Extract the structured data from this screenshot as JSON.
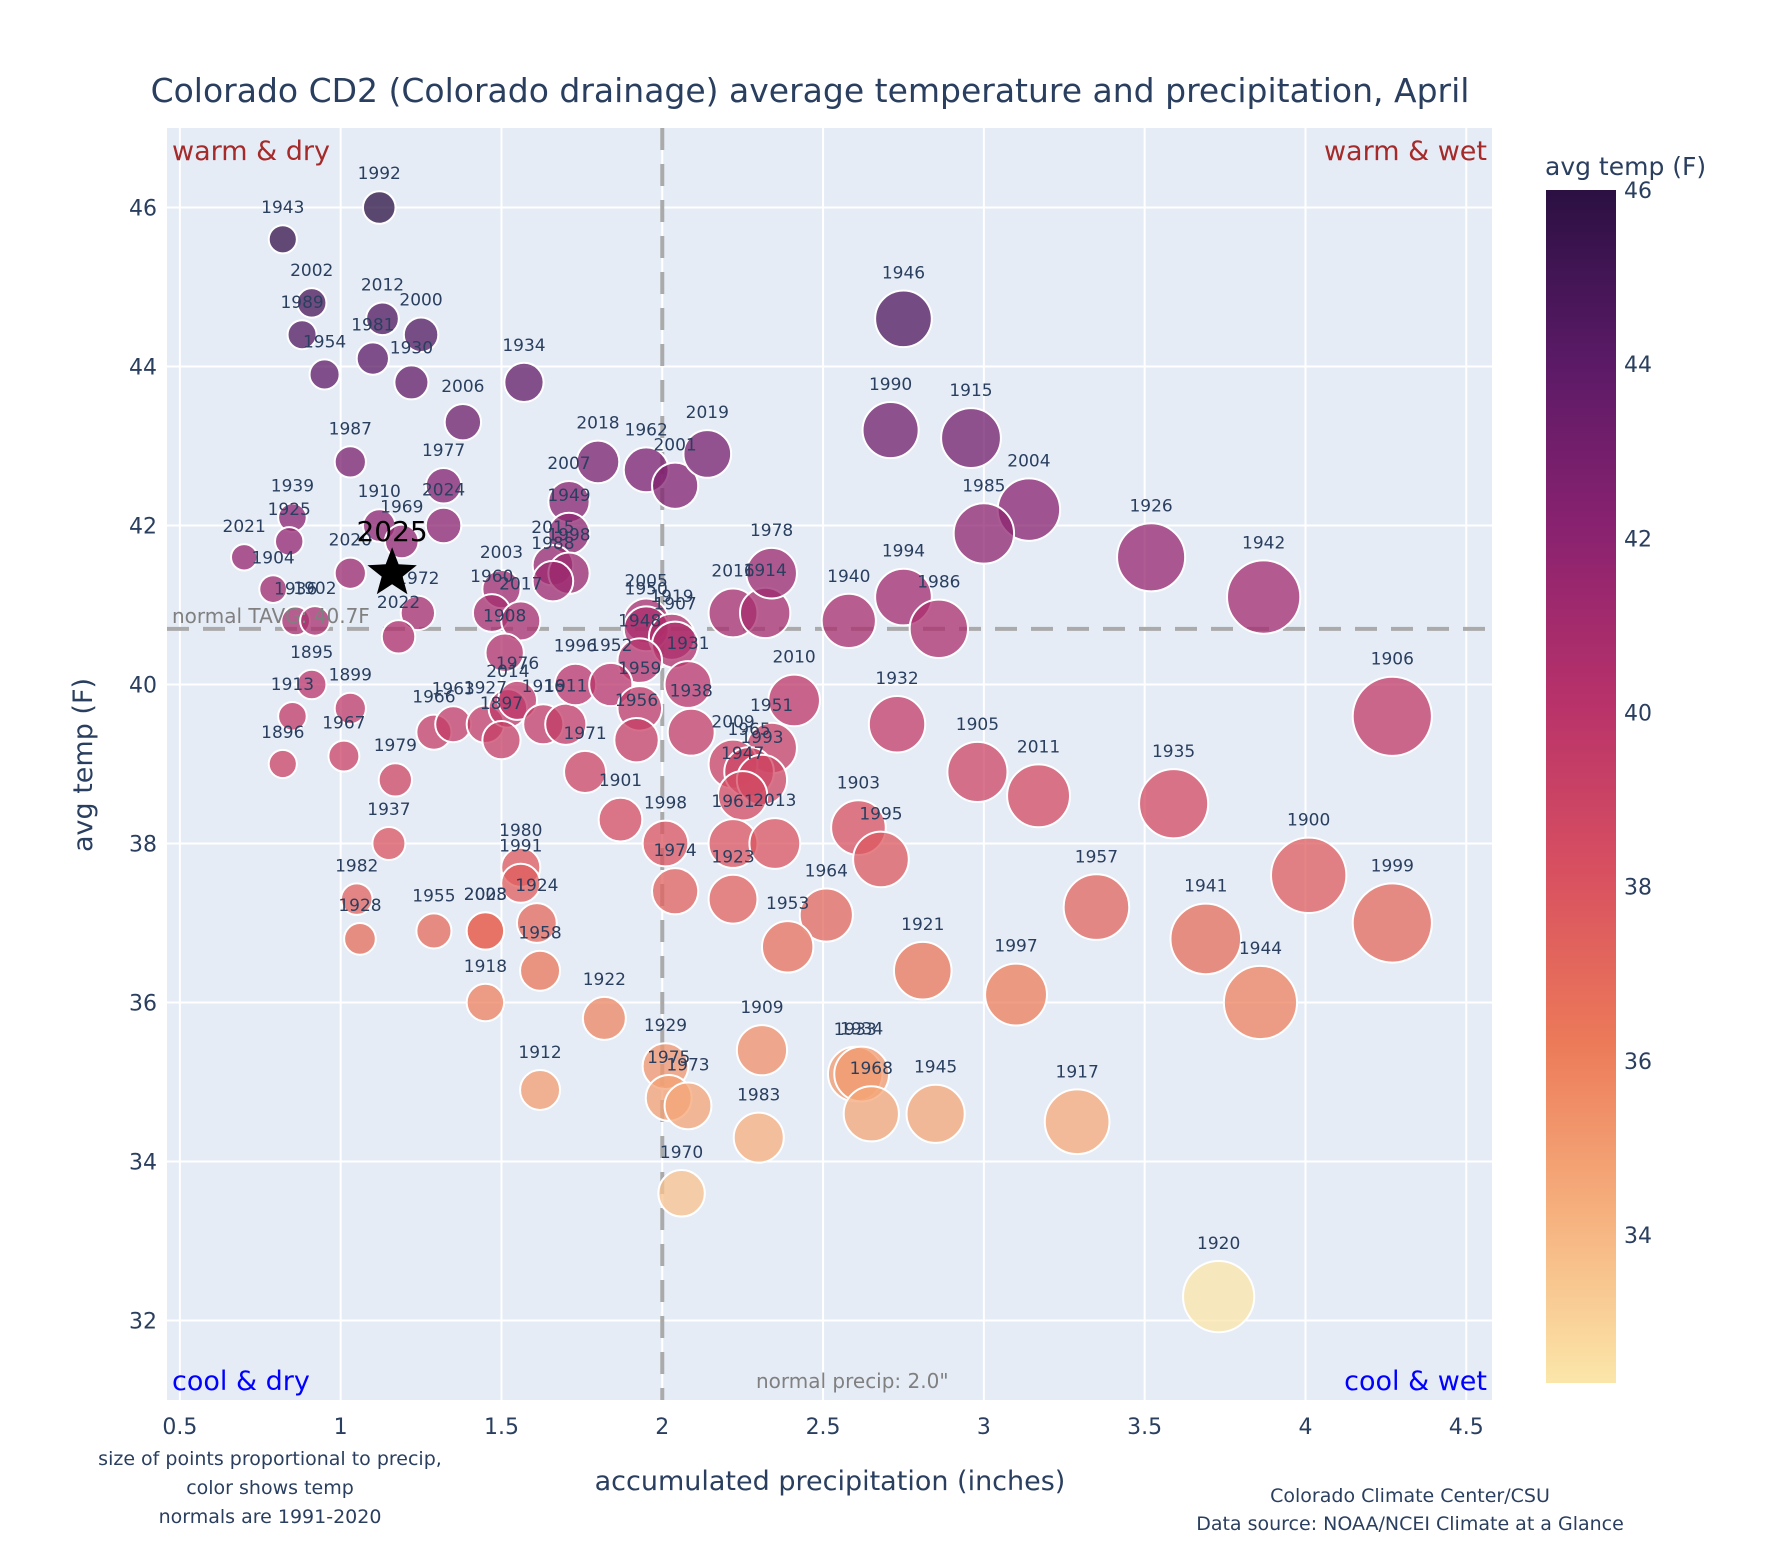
{
  "chart_data": {
    "type": "scatter",
    "title": "Colorado CD2 (Colorado drainage) average temperature and precipitation, April",
    "xlabel": "accumulated precipitation (inches)",
    "ylabel": "avg temp (F)",
    "xlim": [
      0.46,
      4.58
    ],
    "ylim": [
      31.0,
      47.0
    ],
    "xticks": [
      "0.5",
      "1",
      "1.5",
      "2",
      "2.5",
      "3",
      "3.5",
      "4",
      "4.5"
    ],
    "xtick_values": [
      0.5,
      1,
      1.5,
      2,
      2.5,
      3,
      3.5,
      4,
      4.5
    ],
    "yticks": [
      "32",
      "34",
      "36",
      "38",
      "40",
      "42",
      "44",
      "46"
    ],
    "ytick_values": [
      32,
      34,
      36,
      38,
      40,
      42,
      44,
      46
    ],
    "grid": true,
    "colorbar": {
      "title": "avg temp (F)",
      "range": [
        32.3,
        46.0
      ],
      "ticks": [
        "34",
        "36",
        "38",
        "40",
        "42",
        "44",
        "46"
      ],
      "tick_values": [
        34,
        36,
        38,
        40,
        42,
        44,
        46
      ],
      "colorscale": [
        "#fbe6a9",
        "#f6b07e",
        "#ec7a59",
        "#d85060",
        "#b8326a",
        "#8a2270",
        "#5a1a66",
        "#2b1042"
      ]
    },
    "normal_temp": 40.7,
    "normal_precip": 2.0,
    "normal_temp_label": "normal TAVG: 40.7F",
    "normal_precip_label": "normal precip: 2.0\"",
    "quadrants": {
      "top_left": "warm & dry",
      "top_right": "warm & wet",
      "bottom_left": "cool & dry",
      "bottom_right": "cool & wet"
    },
    "highlight": {
      "label": "2025",
      "x": 1.16,
      "y": 41.4,
      "marker": "star"
    },
    "points": [
      {
        "year": "1992",
        "x": 1.12,
        "y": 46.0
      },
      {
        "year": "1943",
        "x": 0.82,
        "y": 45.6
      },
      {
        "year": "2002",
        "x": 0.91,
        "y": 44.8
      },
      {
        "year": "1989",
        "x": 0.88,
        "y": 44.4
      },
      {
        "year": "2012",
        "x": 1.13,
        "y": 44.6
      },
      {
        "year": "2000",
        "x": 1.25,
        "y": 44.4
      },
      {
        "year": "1981",
        "x": 1.1,
        "y": 44.1
      },
      {
        "year": "1954",
        "x": 0.95,
        "y": 43.9
      },
      {
        "year": "1930",
        "x": 1.22,
        "y": 43.8
      },
      {
        "year": "1934",
        "x": 1.57,
        "y": 43.8
      },
      {
        "year": "2006",
        "x": 1.38,
        "y": 43.3
      },
      {
        "year": "1987",
        "x": 1.03,
        "y": 42.8
      },
      {
        "year": "1977",
        "x": 1.32,
        "y": 42.5
      },
      {
        "year": "2018",
        "x": 1.8,
        "y": 42.8
      },
      {
        "year": "1962",
        "x": 1.95,
        "y": 42.7
      },
      {
        "year": "2001",
        "x": 2.04,
        "y": 42.5
      },
      {
        "year": "2019",
        "x": 2.14,
        "y": 42.9
      },
      {
        "year": "2007",
        "x": 1.71,
        "y": 42.3
      },
      {
        "year": "1939",
        "x": 0.85,
        "y": 42.1
      },
      {
        "year": "1910",
        "x": 1.12,
        "y": 42.0
      },
      {
        "year": "2024",
        "x": 1.32,
        "y": 42.0
      },
      {
        "year": "1925",
        "x": 0.84,
        "y": 41.8
      },
      {
        "year": "1969",
        "x": 1.19,
        "y": 41.8
      },
      {
        "year": "2021",
        "x": 0.7,
        "y": 41.6
      },
      {
        "year": "1949",
        "x": 1.71,
        "y": 41.9
      },
      {
        "year": "2015",
        "x": 1.66,
        "y": 41.5
      },
      {
        "year": "1998",
        "x": 1.71,
        "y": 41.4
      },
      {
        "year": "1988",
        "x": 1.66,
        "y": 41.3
      },
      {
        "year": "2020",
        "x": 1.03,
        "y": 41.4
      },
      {
        "year": "1904",
        "x": 0.79,
        "y": 41.2
      },
      {
        "year": "2003",
        "x": 1.5,
        "y": 41.2
      },
      {
        "year": "1972",
        "x": 1.24,
        "y": 40.9
      },
      {
        "year": "1960",
        "x": 1.47,
        "y": 40.9
      },
      {
        "year": "2017",
        "x": 1.56,
        "y": 40.8
      },
      {
        "year": "1936",
        "x": 0.86,
        "y": 40.8
      },
      {
        "year": "1902",
        "x": 0.92,
        "y": 40.8
      },
      {
        "year": "2022",
        "x": 1.18,
        "y": 40.6
      },
      {
        "year": "1908",
        "x": 1.51,
        "y": 40.4
      },
      {
        "year": "2005",
        "x": 1.95,
        "y": 40.8
      },
      {
        "year": "1950",
        "x": 1.95,
        "y": 40.7
      },
      {
        "year": "1919",
        "x": 2.03,
        "y": 40.6
      },
      {
        "year": "1907",
        "x": 2.04,
        "y": 40.5
      },
      {
        "year": "1948",
        "x": 1.93,
        "y": 40.3
      },
      {
        "year": "2016",
        "x": 2.22,
        "y": 40.9
      },
      {
        "year": "1914",
        "x": 2.32,
        "y": 40.9
      },
      {
        "year": "1978",
        "x": 2.34,
        "y": 41.4
      },
      {
        "year": "1940",
        "x": 2.58,
        "y": 40.8
      },
      {
        "year": "1994",
        "x": 2.75,
        "y": 41.1
      },
      {
        "year": "1986",
        "x": 2.86,
        "y": 40.7
      },
      {
        "year": "1990",
        "x": 2.71,
        "y": 43.2
      },
      {
        "year": "1915",
        "x": 2.96,
        "y": 43.1
      },
      {
        "year": "2004",
        "x": 3.14,
        "y": 42.2
      },
      {
        "year": "1985",
        "x": 3.0,
        "y": 41.9
      },
      {
        "year": "1926",
        "x": 3.52,
        "y": 41.6
      },
      {
        "year": "1942",
        "x": 3.87,
        "y": 41.1
      },
      {
        "year": "1946",
        "x": 2.75,
        "y": 44.6
      },
      {
        "year": "1895",
        "x": 0.91,
        "y": 40.0
      },
      {
        "year": "1913",
        "x": 0.85,
        "y": 39.6
      },
      {
        "year": "1899",
        "x": 1.03,
        "y": 39.7
      },
      {
        "year": "1896",
        "x": 0.82,
        "y": 39.0
      },
      {
        "year": "1967",
        "x": 1.01,
        "y": 39.1
      },
      {
        "year": "1979",
        "x": 1.17,
        "y": 38.8
      },
      {
        "year": "1966",
        "x": 1.29,
        "y": 39.4
      },
      {
        "year": "1963",
        "x": 1.35,
        "y": 39.5
      },
      {
        "year": "1927",
        "x": 1.45,
        "y": 39.5
      },
      {
        "year": "2014",
        "x": 1.52,
        "y": 39.7
      },
      {
        "year": "1976",
        "x": 1.55,
        "y": 39.8
      },
      {
        "year": "1897",
        "x": 1.5,
        "y": 39.3
      },
      {
        "year": "1916",
        "x": 1.63,
        "y": 39.5
      },
      {
        "year": "1911",
        "x": 1.7,
        "y": 39.5
      },
      {
        "year": "1996",
        "x": 1.73,
        "y": 40.0
      },
      {
        "year": "1952",
        "x": 1.84,
        "y": 40.0
      },
      {
        "year": "1959",
        "x": 1.93,
        "y": 39.7
      },
      {
        "year": "1931",
        "x": 2.08,
        "y": 40.0
      },
      {
        "year": "1956",
        "x": 1.92,
        "y": 39.3
      },
      {
        "year": "1938",
        "x": 2.09,
        "y": 39.4
      },
      {
        "year": "1971",
        "x": 1.76,
        "y": 38.9
      },
      {
        "year": "2010",
        "x": 2.41,
        "y": 39.8
      },
      {
        "year": "1951",
        "x": 2.34,
        "y": 39.2
      },
      {
        "year": "2009",
        "x": 2.22,
        "y": 39.0
      },
      {
        "year": "1965",
        "x": 2.27,
        "y": 38.9
      },
      {
        "year": "1993",
        "x": 2.31,
        "y": 38.8
      },
      {
        "year": "1947",
        "x": 2.25,
        "y": 38.6
      },
      {
        "year": "1932",
        "x": 2.73,
        "y": 39.5
      },
      {
        "year": "1905",
        "x": 2.98,
        "y": 38.9
      },
      {
        "year": "2011",
        "x": 3.17,
        "y": 38.6
      },
      {
        "year": "1935",
        "x": 3.59,
        "y": 38.5
      },
      {
        "year": "1906",
        "x": 4.27,
        "y": 39.6
      },
      {
        "year": "1901",
        "x": 1.87,
        "y": 38.3
      },
      {
        "year": "1998",
        "x": 2.01,
        "y": 38.0
      },
      {
        "year": "1961",
        "x": 2.22,
        "y": 38.0
      },
      {
        "year": "2013",
        "x": 2.35,
        "y": 38.0
      },
      {
        "year": "1903",
        "x": 2.61,
        "y": 38.2
      },
      {
        "year": "1995",
        "x": 2.68,
        "y": 37.8
      },
      {
        "year": "1937",
        "x": 1.15,
        "y": 38.0
      },
      {
        "year": "1980",
        "x": 1.56,
        "y": 37.7
      },
      {
        "year": "1991",
        "x": 1.56,
        "y": 37.5
      },
      {
        "year": "1982",
        "x": 1.05,
        "y": 37.3
      },
      {
        "year": "1928",
        "x": 1.06,
        "y": 36.8
      },
      {
        "year": "1955",
        "x": 1.29,
        "y": 36.9
      },
      {
        "year": "2023",
        "x": 1.45,
        "y": 36.9
      },
      {
        "year": "2008",
        "x": 1.45,
        "y": 36.9
      },
      {
        "year": "1924",
        "x": 1.61,
        "y": 37.0
      },
      {
        "year": "1958",
        "x": 1.62,
        "y": 36.4
      },
      {
        "year": "1918",
        "x": 1.45,
        "y": 36.0
      },
      {
        "year": "1974",
        "x": 2.04,
        "y": 37.4
      },
      {
        "year": "1923",
        "x": 2.22,
        "y": 37.3
      },
      {
        "year": "1964",
        "x": 2.51,
        "y": 37.1
      },
      {
        "year": "1953",
        "x": 2.39,
        "y": 36.7
      },
      {
        "year": "1957",
        "x": 3.35,
        "y": 37.2
      },
      {
        "year": "1900",
        "x": 4.01,
        "y": 37.6
      },
      {
        "year": "1941",
        "x": 3.69,
        "y": 36.8
      },
      {
        "year": "1999",
        "x": 4.27,
        "y": 37.0
      },
      {
        "year": "1921",
        "x": 2.81,
        "y": 36.4
      },
      {
        "year": "1997",
        "x": 3.1,
        "y": 36.1
      },
      {
        "year": "1944",
        "x": 3.86,
        "y": 36.0
      },
      {
        "year": "1922",
        "x": 1.82,
        "y": 35.8
      },
      {
        "year": "1909",
        "x": 2.31,
        "y": 35.4
      },
      {
        "year": "1929",
        "x": 2.01,
        "y": 35.2
      },
      {
        "year": "1975",
        "x": 2.02,
        "y": 34.8
      },
      {
        "year": "1973",
        "x": 2.08,
        "y": 34.7
      },
      {
        "year": "1912",
        "x": 1.62,
        "y": 34.9
      },
      {
        "year": "1933",
        "x": 2.6,
        "y": 35.1
      },
      {
        "year": "1934b",
        "x": 2.62,
        "y": 35.1
      },
      {
        "year": "1968",
        "x": 2.65,
        "y": 34.6
      },
      {
        "year": "1945",
        "x": 2.85,
        "y": 34.6
      },
      {
        "year": "1983",
        "x": 2.3,
        "y": 34.3
      },
      {
        "year": "1917",
        "x": 3.29,
        "y": 34.5
      },
      {
        "year": "1970",
        "x": 2.06,
        "y": 33.6
      },
      {
        "year": "1920",
        "x": 3.73,
        "y": 32.3
      }
    ]
  },
  "notes": {
    "left": [
      "size of points proportional to precip,",
      "color shows temp",
      "normals are 1991-2020"
    ],
    "right": [
      "Colorado Climate Center/CSU",
      "Data source: NOAA/NCEI Climate at a Glance"
    ]
  }
}
